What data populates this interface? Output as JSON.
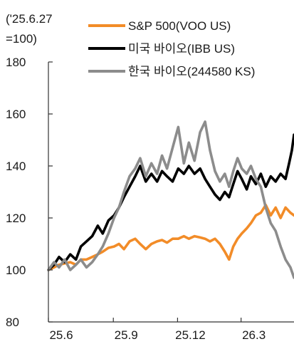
{
  "chart_data": {
    "type": "line",
    "unit_label": [
      "('25.6.27",
      "=100)"
    ],
    "ylim": [
      80,
      180
    ],
    "yticks": [
      80,
      100,
      120,
      140,
      160,
      180
    ],
    "xlim": [
      "2025-06-27",
      "2026-06-10"
    ],
    "xticks": [
      {
        "label": "25.6",
        "date": "2025-06-27"
      },
      {
        "label": "25.9",
        "date": "2025-09-27"
      },
      {
        "label": "25.12",
        "date": "2025-12-27"
      },
      {
        "label": "26.3",
        "date": "2026-03-27"
      }
    ],
    "legend_position": "top-right",
    "series": [
      {
        "name": "S&P 500(VOO US)",
        "color": "#f28c28",
        "points": [
          [
            "2025-06-27",
            100
          ],
          [
            "2025-07-05",
            101
          ],
          [
            "2025-07-12",
            102
          ],
          [
            "2025-07-20",
            102.5
          ],
          [
            "2025-07-28",
            103
          ],
          [
            "2025-08-05",
            102
          ],
          [
            "2025-08-12",
            104
          ],
          [
            "2025-08-20",
            104
          ],
          [
            "2025-08-28",
            105
          ],
          [
            "2025-09-05",
            106
          ],
          [
            "2025-09-12",
            107
          ],
          [
            "2025-09-20",
            108.5
          ],
          [
            "2025-09-28",
            109
          ],
          [
            "2025-10-05",
            110
          ],
          [
            "2025-10-12",
            108
          ],
          [
            "2025-10-20",
            111
          ],
          [
            "2025-10-28",
            112
          ],
          [
            "2025-11-04",
            110
          ],
          [
            "2025-11-12",
            108
          ],
          [
            "2025-11-20",
            110
          ],
          [
            "2025-11-28",
            111
          ],
          [
            "2025-12-05",
            111.5
          ],
          [
            "2025-12-12",
            110.5
          ],
          [
            "2025-12-20",
            112
          ],
          [
            "2025-12-28",
            112
          ],
          [
            "2026-01-05",
            113
          ],
          [
            "2026-01-12",
            112
          ],
          [
            "2026-01-20",
            113
          ],
          [
            "2026-01-28",
            112.5
          ],
          [
            "2026-02-04",
            112
          ],
          [
            "2026-02-11",
            111
          ],
          [
            "2026-02-18",
            112
          ],
          [
            "2026-02-25",
            110
          ],
          [
            "2026-03-04",
            107
          ],
          [
            "2026-03-10",
            104
          ],
          [
            "2026-03-16",
            109
          ],
          [
            "2026-03-22",
            112
          ],
          [
            "2026-03-28",
            114
          ],
          [
            "2026-04-04",
            116
          ],
          [
            "2026-04-10",
            118
          ],
          [
            "2026-04-17",
            121
          ],
          [
            "2026-04-24",
            122
          ],
          [
            "2026-05-01",
            125
          ],
          [
            "2026-05-08",
            121
          ],
          [
            "2026-05-15",
            124
          ],
          [
            "2026-05-22",
            120
          ],
          [
            "2026-05-29",
            124
          ],
          [
            "2026-06-05",
            122
          ],
          [
            "2026-06-10",
            121
          ]
        ]
      },
      {
        "name": "미국 바이오(IBB US)",
        "color": "#000000",
        "points": [
          [
            "2025-06-27",
            100
          ],
          [
            "2025-07-05",
            102
          ],
          [
            "2025-07-12",
            105
          ],
          [
            "2025-07-20",
            103
          ],
          [
            "2025-07-28",
            106
          ],
          [
            "2025-08-05",
            104
          ],
          [
            "2025-08-12",
            109
          ],
          [
            "2025-08-20",
            111
          ],
          [
            "2025-08-28",
            113
          ],
          [
            "2025-09-05",
            117
          ],
          [
            "2025-09-12",
            114
          ],
          [
            "2025-09-20",
            119
          ],
          [
            "2025-09-28",
            121
          ],
          [
            "2025-10-05",
            124
          ],
          [
            "2025-10-12",
            128
          ],
          [
            "2025-10-20",
            132
          ],
          [
            "2025-10-28",
            136
          ],
          [
            "2025-11-04",
            140
          ],
          [
            "2025-11-12",
            134
          ],
          [
            "2025-11-20",
            137
          ],
          [
            "2025-11-28",
            134
          ],
          [
            "2025-12-05",
            138
          ],
          [
            "2025-12-12",
            136
          ],
          [
            "2025-12-20",
            134
          ],
          [
            "2025-12-28",
            139
          ],
          [
            "2026-01-05",
            137
          ],
          [
            "2026-01-12",
            140
          ],
          [
            "2026-01-20",
            137
          ],
          [
            "2026-01-28",
            139
          ],
          [
            "2026-02-04",
            135
          ],
          [
            "2026-02-11",
            132
          ],
          [
            "2026-02-18",
            129
          ],
          [
            "2026-02-25",
            127
          ],
          [
            "2026-03-04",
            130
          ],
          [
            "2026-03-10",
            128
          ],
          [
            "2026-03-16",
            133
          ],
          [
            "2026-03-22",
            138
          ],
          [
            "2026-03-28",
            135
          ],
          [
            "2026-04-04",
            131
          ],
          [
            "2026-04-10",
            136
          ],
          [
            "2026-04-17",
            133
          ],
          [
            "2026-04-24",
            137
          ],
          [
            "2026-05-01",
            132
          ],
          [
            "2026-05-08",
            136
          ],
          [
            "2026-05-15",
            134
          ],
          [
            "2026-05-22",
            137
          ],
          [
            "2026-05-29",
            135
          ],
          [
            "2026-06-03",
            141
          ],
          [
            "2026-06-07",
            146
          ],
          [
            "2026-06-10",
            152
          ]
        ]
      },
      {
        "name": "한국 바이오(244580 KS)",
        "color": "#8c8c8c",
        "points": [
          [
            "2025-06-27",
            100
          ],
          [
            "2025-07-05",
            103
          ],
          [
            "2025-07-12",
            101
          ],
          [
            "2025-07-20",
            104
          ],
          [
            "2025-07-28",
            100
          ],
          [
            "2025-08-05",
            102
          ],
          [
            "2025-08-12",
            104
          ],
          [
            "2025-08-20",
            101
          ],
          [
            "2025-08-28",
            103
          ],
          [
            "2025-09-05",
            106
          ],
          [
            "2025-09-12",
            109
          ],
          [
            "2025-09-20",
            114
          ],
          [
            "2025-09-28",
            120
          ],
          [
            "2025-10-05",
            124
          ],
          [
            "2025-10-12",
            130
          ],
          [
            "2025-10-20",
            136
          ],
          [
            "2025-10-28",
            139
          ],
          [
            "2025-11-04",
            143
          ],
          [
            "2025-11-12",
            136
          ],
          [
            "2025-11-20",
            141
          ],
          [
            "2025-11-28",
            137
          ],
          [
            "2025-12-05",
            144
          ],
          [
            "2025-12-12",
            139
          ],
          [
            "2025-12-20",
            147
          ],
          [
            "2025-12-28",
            155
          ],
          [
            "2026-01-05",
            141
          ],
          [
            "2026-01-12",
            149
          ],
          [
            "2026-01-20",
            142
          ],
          [
            "2026-01-28",
            153
          ],
          [
            "2026-02-04",
            157
          ],
          [
            "2026-02-11",
            146
          ],
          [
            "2026-02-18",
            138
          ],
          [
            "2026-02-25",
            134
          ],
          [
            "2026-03-04",
            137
          ],
          [
            "2026-03-10",
            132
          ],
          [
            "2026-03-16",
            138
          ],
          [
            "2026-03-22",
            143
          ],
          [
            "2026-03-28",
            139
          ],
          [
            "2026-04-04",
            137
          ],
          [
            "2026-04-10",
            140
          ],
          [
            "2026-04-17",
            135
          ],
          [
            "2026-04-24",
            132
          ],
          [
            "2026-05-01",
            124
          ],
          [
            "2026-05-08",
            118
          ],
          [
            "2026-05-15",
            115
          ],
          [
            "2026-05-22",
            109
          ],
          [
            "2026-05-29",
            104
          ],
          [
            "2026-06-05",
            101
          ],
          [
            "2026-06-10",
            97
          ]
        ]
      }
    ]
  }
}
